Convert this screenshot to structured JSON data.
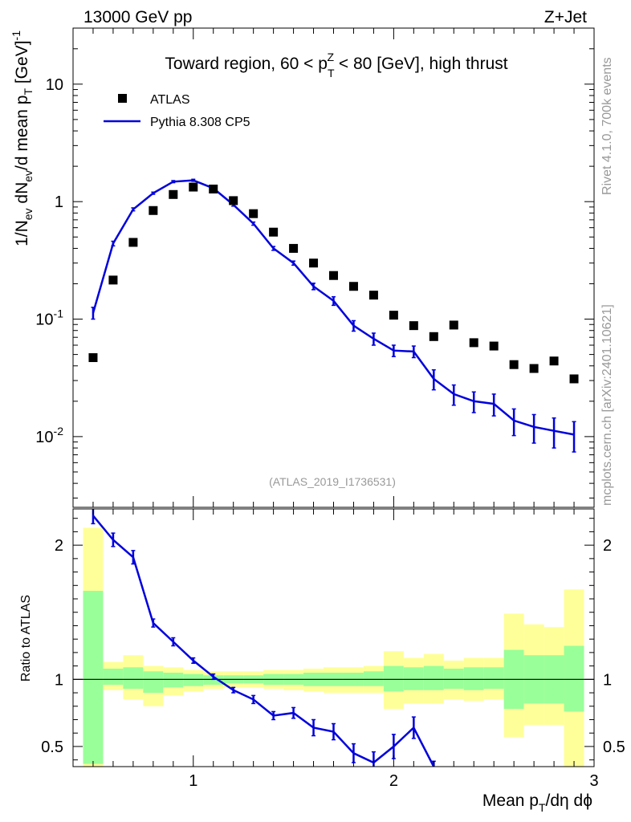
{
  "header": {
    "left_title": "13000 GeV pp",
    "right_title": "Z+Jet"
  },
  "side_labels": {
    "rivet": "Rivet 4.1.0,  700k events",
    "mcplots": "mcplots.cern.ch [arXiv:2401.10621]"
  },
  "chart_data": [
    {
      "type": "scatter",
      "panel": "main",
      "title": "Toward region, 60 < p_T^Z < 80 [GeV], high thrust",
      "title_parts": {
        "pre": "Toward region, 60 < p",
        "sup": "Z",
        "sub": "T",
        "post": " < 80 [GeV], high thrust"
      },
      "ylabel_parts": {
        "a": "1/N",
        "a_sub": "ev",
        "b": " dN",
        "b_sub": "ev",
        "c": "/d mean p",
        "c_sub": "T",
        "d": " [GeV]",
        "d_sup": "-1"
      },
      "yscale": "log",
      "ylim": [
        0.0025,
        30
      ],
      "xlim": [
        0.4,
        3.0
      ],
      "yticks": [
        {
          "v": 0.01,
          "base": "10",
          "exp": "-2"
        },
        {
          "v": 0.1,
          "base": "10",
          "exp": "-1"
        },
        {
          "v": 1,
          "base": "1",
          "exp": ""
        },
        {
          "v": 10,
          "base": "10",
          "exp": ""
        }
      ],
      "watermark": "(ATLAS_2019_I1736531)",
      "legend": [
        {
          "label": "ATLAS",
          "style": "marker"
        },
        {
          "label": "Pythia 8.308 CP5",
          "style": "line"
        }
      ],
      "series": [
        {
          "name": "ATLAS",
          "color": "#000000",
          "x": [
            0.5,
            0.6,
            0.7,
            0.8,
            0.9,
            1.0,
            1.1,
            1.2,
            1.3,
            1.4,
            1.5,
            1.6,
            1.7,
            1.8,
            1.9,
            2.0,
            2.1,
            2.2,
            2.3,
            2.4,
            2.5,
            2.6,
            2.7,
            2.8,
            2.9
          ],
          "y": [
            0.047,
            0.215,
            0.45,
            0.84,
            1.15,
            1.33,
            1.28,
            1.02,
            0.79,
            0.55,
            0.4,
            0.3,
            0.235,
            0.19,
            0.16,
            0.108,
            0.088,
            0.071,
            0.089,
            0.063,
            0.059,
            0.041,
            0.038,
            0.044,
            0.031
          ]
        },
        {
          "name": "Pythia 8.308 CP5",
          "color": "#0000dd",
          "x": [
            0.5,
            0.6,
            0.7,
            0.8,
            0.9,
            1.0,
            1.1,
            1.2,
            1.3,
            1.4,
            1.5,
            1.6,
            1.7,
            1.8,
            1.9,
            2.0,
            2.1,
            2.2,
            2.3,
            2.4,
            2.5,
            2.6,
            2.7,
            2.8,
            2.9
          ],
          "y": [
            0.113,
            0.44,
            0.86,
            1.18,
            1.48,
            1.52,
            1.3,
            0.94,
            0.65,
            0.4,
            0.3,
            0.19,
            0.143,
            0.088,
            0.068,
            0.054,
            0.053,
            0.031,
            0.023,
            0.02,
            0.019,
            0.0137,
            0.0121,
            0.0112,
            0.0104
          ],
          "yerr": [
            0.013,
            0.02,
            0.025,
            0.025,
            0.03,
            0.03,
            0.03,
            0.025,
            0.02,
            0.015,
            0.012,
            0.012,
            0.012,
            0.009,
            0.008,
            0.006,
            0.006,
            0.006,
            0.0045,
            0.004,
            0.004,
            0.0035,
            0.0033,
            0.0032,
            0.003
          ]
        }
      ]
    },
    {
      "type": "line",
      "panel": "ratio",
      "ylabel": "Ratio to ATLAS",
      "xlabel_parts": {
        "a": "Mean p",
        "a_sub": "T",
        "b": "/dη dϕ"
      },
      "ylim": [
        0.35,
        2.27
      ],
      "xlim": [
        0.4,
        3.0
      ],
      "yticks": [
        0.5,
        1,
        2
      ],
      "ytick_labels": [
        "0.5",
        "1",
        "2"
      ],
      "xticks": [
        1,
        2,
        3
      ],
      "xtick_labels": [
        "1",
        "2",
        "3"
      ],
      "bands": {
        "x_edges": [
          0.45,
          0.55,
          0.65,
          0.75,
          0.85,
          0.95,
          1.05,
          1.15,
          1.25,
          1.35,
          1.45,
          1.55,
          1.65,
          1.75,
          1.85,
          1.95,
          2.05,
          2.15,
          2.25,
          2.35,
          2.45,
          2.55,
          2.65,
          2.75,
          2.85,
          2.95
        ],
        "yellow_lo": [
          0.35,
          0.92,
          0.85,
          0.8,
          0.88,
          0.91,
          0.93,
          0.94,
          0.94,
          0.93,
          0.92,
          0.91,
          0.9,
          0.9,
          0.9,
          0.78,
          0.82,
          0.82,
          0.85,
          0.84,
          0.85,
          0.57,
          0.66,
          0.66,
          0.35
        ],
        "yellow_hi": [
          2.13,
          1.13,
          1.18,
          1.1,
          1.09,
          1.07,
          1.06,
          1.06,
          1.06,
          1.07,
          1.07,
          1.08,
          1.09,
          1.09,
          1.1,
          1.21,
          1.16,
          1.19,
          1.14,
          1.16,
          1.16,
          1.49,
          1.41,
          1.39,
          1.67
        ],
        "green_lo": [
          0.37,
          0.96,
          0.93,
          0.9,
          0.94,
          0.95,
          0.96,
          0.97,
          0.97,
          0.96,
          0.96,
          0.95,
          0.95,
          0.95,
          0.95,
          0.91,
          0.92,
          0.92,
          0.93,
          0.92,
          0.93,
          0.78,
          0.82,
          0.82,
          0.76
        ],
        "green_hi": [
          1.66,
          1.08,
          1.09,
          1.06,
          1.05,
          1.04,
          1.03,
          1.03,
          1.03,
          1.04,
          1.04,
          1.05,
          1.05,
          1.05,
          1.06,
          1.1,
          1.09,
          1.1,
          1.08,
          1.09,
          1.09,
          1.22,
          1.18,
          1.18,
          1.25
        ]
      },
      "series": [
        {
          "name": "Pythia 8.308 CP5 / ATLAS",
          "color": "#0000dd",
          "x": [
            0.5,
            0.6,
            0.7,
            0.8,
            0.9,
            1.0,
            1.1,
            1.2,
            1.3,
            1.4,
            1.5,
            1.6,
            1.7,
            1.8,
            1.9,
            2.0,
            2.1,
            2.2
          ],
          "y": [
            2.22,
            2.04,
            1.91,
            1.42,
            1.28,
            1.14,
            1.02,
            0.92,
            0.85,
            0.73,
            0.75,
            0.64,
            0.61,
            0.45,
            0.38,
            0.5,
            0.64,
            0.3
          ],
          "yerr": [
            0.06,
            0.05,
            0.05,
            0.03,
            0.03,
            0.02,
            0.02,
            0.02,
            0.03,
            0.03,
            0.04,
            0.06,
            0.06,
            0.07,
            0.08,
            0.09,
            0.08,
            0.09
          ]
        }
      ],
      "reference_line": 1
    }
  ]
}
